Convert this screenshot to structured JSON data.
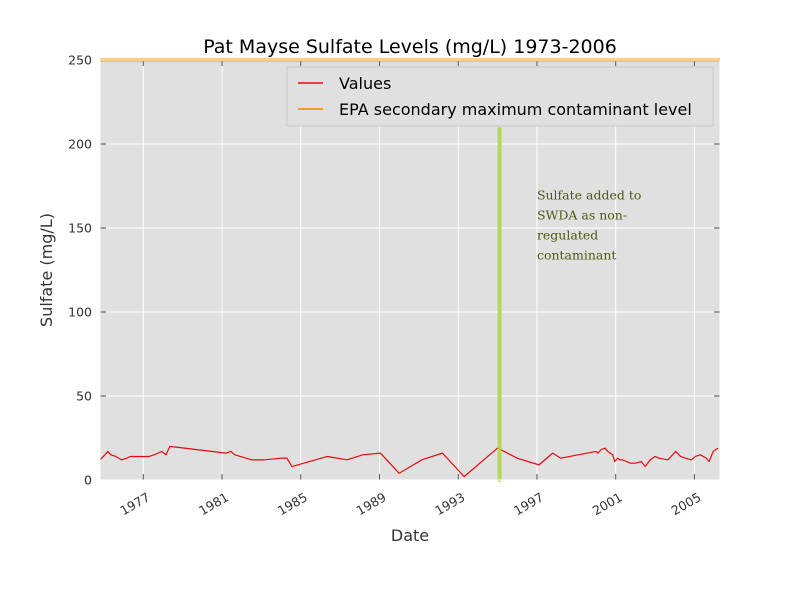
{
  "chart_data": {
    "type": "line",
    "title": "Pat Mayse Sulfate Levels (mg/L) 1973-2006",
    "xlabel": "Date",
    "ylabel": "Sulfate (mg/L)",
    "xlim": [
      1974.8,
      2006.3
    ],
    "ylim": [
      0,
      250
    ],
    "x_ticks": [
      1977,
      1981,
      1985,
      1989,
      1993,
      1997,
      2001,
      2005
    ],
    "x_tick_labels": [
      "1977",
      "1981",
      "1985",
      "1989",
      "1993",
      "1997",
      "2001",
      "2005"
    ],
    "y_ticks": [
      0,
      50,
      100,
      150,
      200,
      250
    ],
    "y_tick_labels": [
      "0",
      "50",
      "100",
      "150",
      "200",
      "250"
    ],
    "grid": true,
    "background": "#e0e0e0",
    "legend_placement": "top-right",
    "series": [
      {
        "name": "Values",
        "color": "#e8090c",
        "x": [
          1974.8,
          1975.05,
          1975.2,
          1975.35,
          1975.6,
          1975.9,
          1976.15,
          1976.35,
          1977.05,
          1977.3,
          1977.55,
          1977.75,
          1977.95,
          1978.15,
          1978.35,
          1981.2,
          1981.45,
          1981.65,
          1982.5,
          1983.15,
          1984.0,
          1984.3,
          1984.55,
          1986.35,
          1987.35,
          1988.15,
          1989.05,
          1990.0,
          1991.15,
          1992.2,
          1993.3,
          1995.0,
          1996.0,
          1997.1,
          1997.8,
          1998.2,
          2000.0,
          2000.1,
          2000.25,
          2000.45,
          2000.6,
          2000.72,
          2000.85,
          2000.95,
          2001.1,
          2001.2,
          2001.35,
          2001.55,
          2001.75,
          2002.0,
          2002.3,
          2002.5,
          2002.75,
          2003.0,
          2003.2,
          2003.65,
          2004.05,
          2004.3,
          2004.55,
          2004.85,
          2005.05,
          2005.3,
          2005.6,
          2005.75,
          2005.95,
          2006.2
        ],
        "values": [
          12,
          15,
          17,
          15,
          14,
          12,
          13,
          14,
          14,
          14,
          15,
          16,
          17,
          15,
          20,
          16,
          17,
          15,
          12,
          12,
          13,
          13,
          8,
          14,
          12,
          15,
          16,
          4,
          12,
          16,
          2,
          19,
          13,
          9,
          16,
          13,
          17,
          16,
          18,
          19,
          17,
          16,
          15,
          11,
          13,
          12,
          12,
          11,
          10,
          10,
          11,
          8,
          12,
          14,
          13,
          12,
          17,
          14,
          13,
          12,
          14,
          15,
          13,
          11,
          17,
          19
        ]
      },
      {
        "name": "EPA secondary maximum contaminant level",
        "color": "#f29c22",
        "x": [
          1974.8,
          2006.3
        ],
        "values": [
          250,
          250
        ]
      }
    ],
    "marker_line": {
      "x": 1995.1,
      "y_range": [
        0,
        209
      ],
      "color": "#b3d44a"
    },
    "annotation": {
      "lines": [
        "Sulfate added to",
        "SWDA as non-",
        "regulated",
        "contaminant"
      ],
      "x": 1997.0,
      "y": 167,
      "color": "#4f5a12"
    }
  }
}
